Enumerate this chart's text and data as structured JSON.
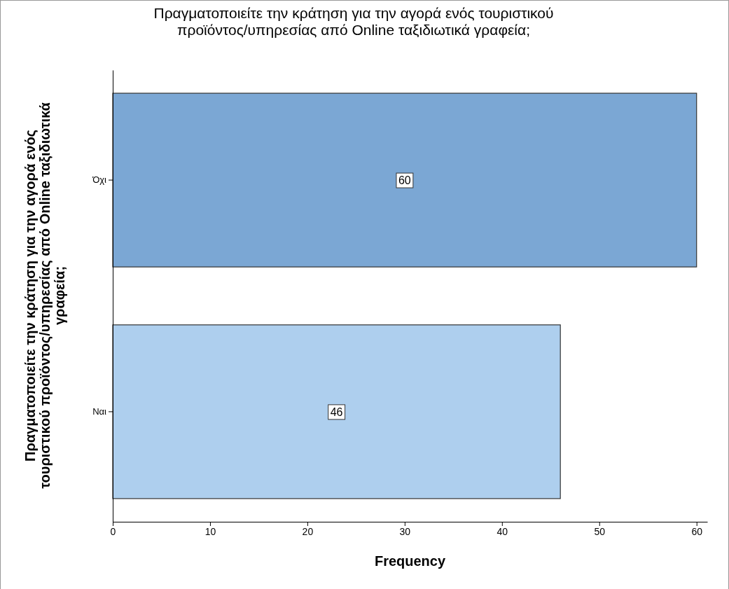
{
  "chart_data": {
    "type": "bar",
    "orientation": "horizontal",
    "title": "Πραγματοποιείτε την κράτηση για την αγορά ενός τουριστικού προϊόντος/υπηρεσίας από Online ταξιδιωτικά γραφεία;",
    "ylabel": "Πραγματοποιείτε την κράτηση για την αγορά ενός τουριστικού προϊόντος/υπηρεσίας από Online ταξιδιωτικά γραφεία;",
    "xlabel": "Frequency",
    "categories": [
      "Όχι",
      "Ναι"
    ],
    "values": [
      60,
      46
    ],
    "colors": [
      "#7ba7d4",
      "#aecfee"
    ],
    "xlim": [
      0,
      61.1
    ],
    "xticks": [
      0,
      10,
      20,
      30,
      40,
      50,
      60
    ],
    "data_labels": true,
    "grid": false
  }
}
